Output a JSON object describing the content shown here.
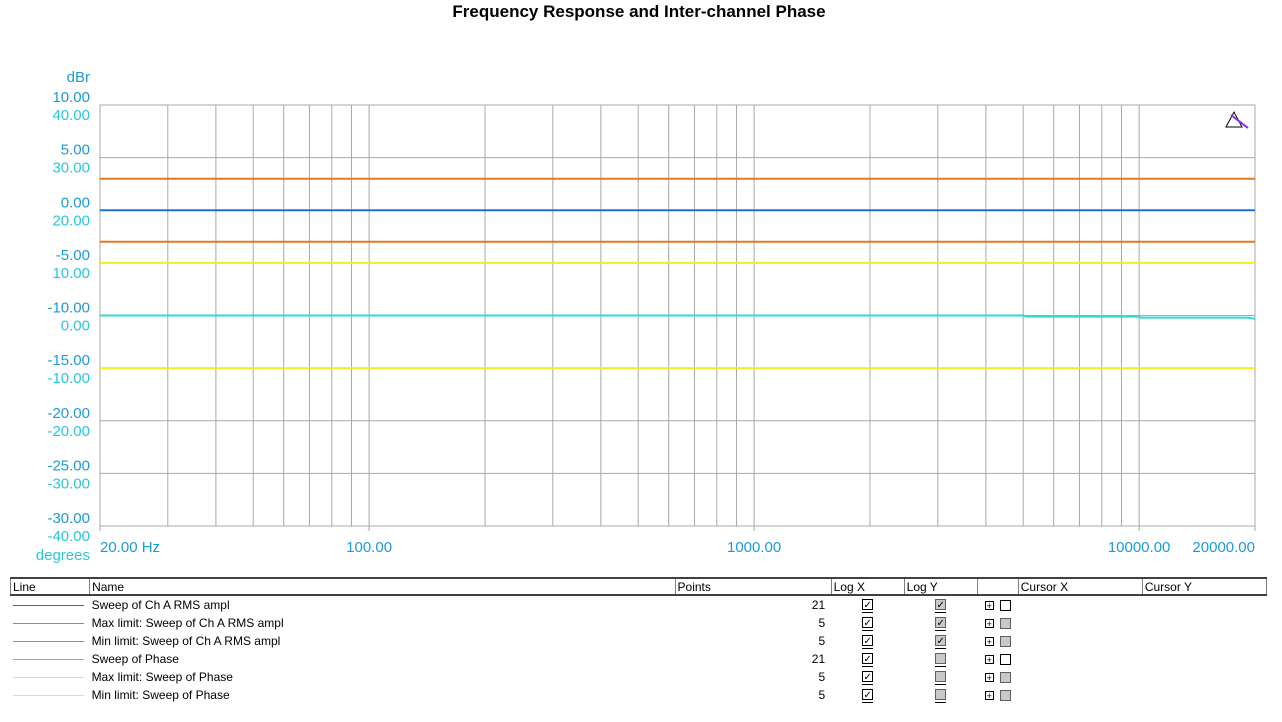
{
  "chart_data": {
    "type": "line",
    "title": "Frequency Response and Inter-channel Phase",
    "x_scale": "log",
    "xlim": [
      20,
      20000
    ],
    "x_ticks": [
      {
        "value": 20,
        "label": "20.00 Hz"
      },
      {
        "value": 100,
        "label": "100.00"
      },
      {
        "value": 1000,
        "label": "1000.00"
      },
      {
        "value": 10000,
        "label": "10000.00"
      },
      {
        "value": 20000,
        "label": "20000.00"
      }
    ],
    "y_left": {
      "unit_label": "dBr",
      "ylim": [
        -30,
        10
      ],
      "ticks": [
        "10.00",
        "5.00",
        "0.00",
        "-5.00",
        "-10.00",
        "-15.00",
        "-20.00",
        "-25.00",
        "-30.00"
      ],
      "color": "#1c9ad6"
    },
    "y_right": {
      "unit_label": "degrees",
      "ylim": [
        -40,
        40
      ],
      "ticks": [
        "40.00",
        "30.00",
        "20.00",
        "10.00",
        "0.00",
        "-10.00",
        "-20.00",
        "-30.00",
        "-40.00"
      ],
      "color": "#27c7dc"
    },
    "grid": true,
    "series": [
      {
        "name": "Sweep of Ch A RMS ampl",
        "axis": "left",
        "color": "#1a72d4",
        "x": [
          20,
          20000
        ],
        "y": [
          0.0,
          0.0
        ]
      },
      {
        "name": "Max limit: Sweep of Ch A RMS ampl",
        "axis": "left",
        "color": "#e07a1e",
        "x": [
          20,
          20000
        ],
        "y": [
          3.0,
          3.0
        ]
      },
      {
        "name": "Min limit: Sweep of Ch A RMS ampl",
        "axis": "left",
        "color": "#e07a1e",
        "x": [
          20,
          20000
        ],
        "y": [
          -3.0,
          -3.0
        ]
      },
      {
        "name": "Sweep of Phase",
        "axis": "right",
        "color": "#2fd9d9",
        "x": [
          20,
          5000,
          5100,
          10000,
          10100,
          19000,
          20000
        ],
        "y": [
          0.0,
          0.0,
          -0.2,
          -0.2,
          -0.4,
          -0.4,
          -0.6
        ]
      },
      {
        "name": "Max limit: Sweep of Phase",
        "axis": "right",
        "color": "#f0f020",
        "x": [
          20,
          20000
        ],
        "y": [
          10.0,
          10.0
        ]
      },
      {
        "name": "Min limit: Sweep of Phase",
        "axis": "right",
        "color": "#f0f020",
        "x": [
          20,
          20000
        ],
        "y": [
          -10.0,
          -10.0
        ]
      }
    ]
  },
  "legend": {
    "headers": {
      "line": "Line",
      "name": "Name",
      "points": "Points",
      "logx": "Log X",
      "logy": "Log Y",
      "blank": "",
      "cursorx": "Cursor X",
      "cursory": "Cursor Y"
    },
    "rows": [
      {
        "name": "Sweep of Ch A RMS ampl",
        "points": "21",
        "color": "#1a72d4",
        "logx": true,
        "logx_enabled": true,
        "logy": true,
        "logy_enabled": false,
        "cursor_enabled": true
      },
      {
        "name": "Max limit: Sweep of Ch A RMS ampl",
        "points": "5",
        "color": "#e07a1e",
        "logx": true,
        "logx_enabled": true,
        "logy": true,
        "logy_enabled": false,
        "cursor_enabled": false
      },
      {
        "name": "Min limit: Sweep of Ch A RMS ampl",
        "points": "5",
        "color": "#e07a1e",
        "logx": true,
        "logx_enabled": true,
        "logy": true,
        "logy_enabled": false,
        "cursor_enabled": false
      },
      {
        "name": "Sweep of Phase",
        "points": "21",
        "color": "#2fd9d9",
        "logx": true,
        "logx_enabled": true,
        "logy": false,
        "logy_enabled": false,
        "cursor_enabled": true
      },
      {
        "name": "Max limit: Sweep of Phase",
        "points": "5",
        "color": "#f0f020",
        "logx": true,
        "logx_enabled": true,
        "logy": false,
        "logy_enabled": false,
        "cursor_enabled": false
      },
      {
        "name": "Min limit: Sweep of Phase",
        "points": "5",
        "color": "#f0f020",
        "logx": true,
        "logx_enabled": true,
        "logy": false,
        "logy_enabled": false,
        "cursor_enabled": false
      }
    ]
  },
  "icons": {
    "autoscale": "triangle-ruler-icon",
    "expand": "plus-box-icon",
    "check": "checkmark-icon"
  }
}
